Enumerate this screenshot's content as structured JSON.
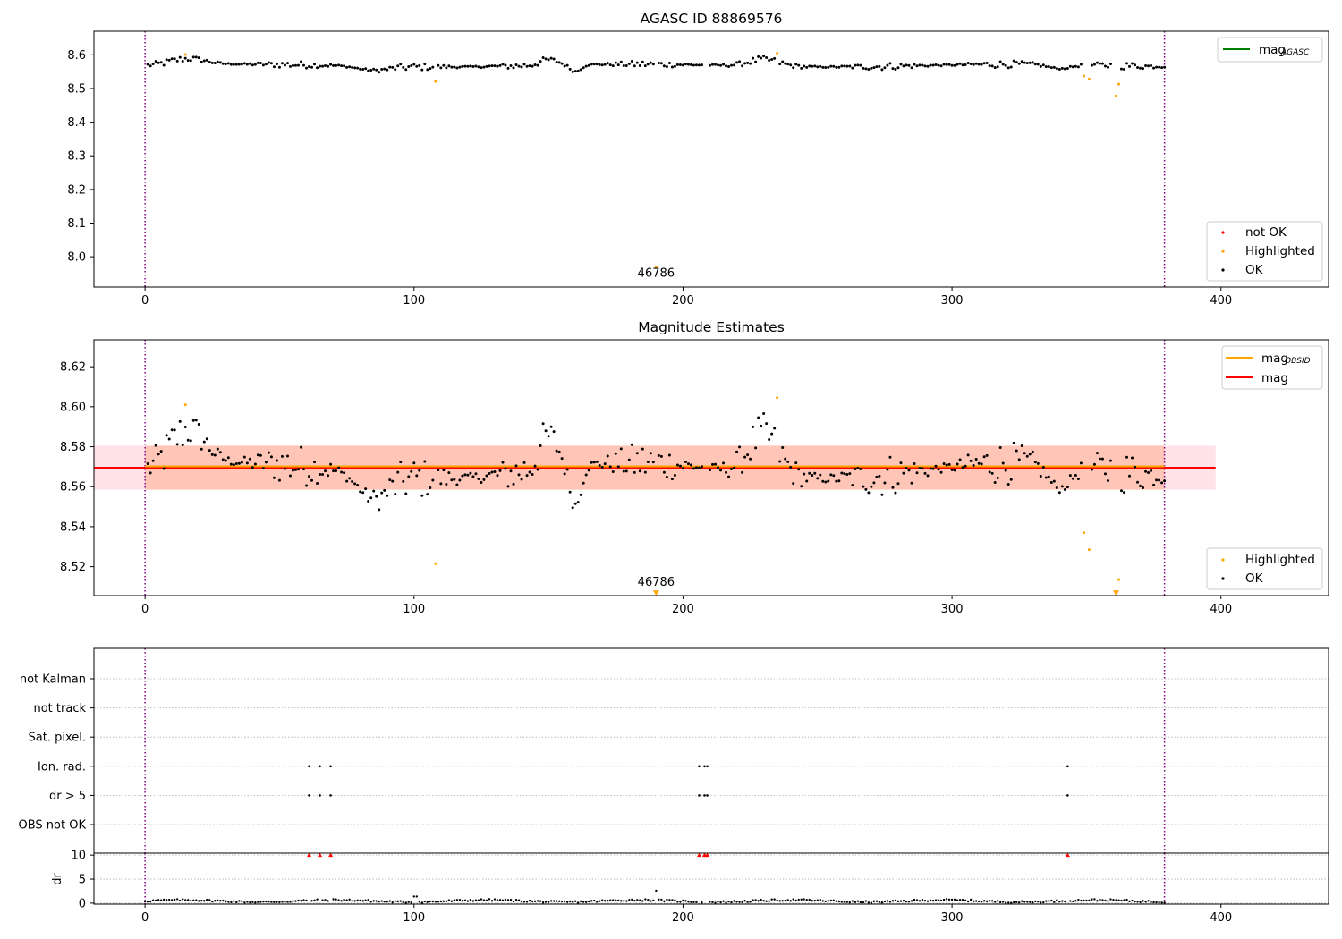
{
  "colors": {
    "ok": "#000000",
    "highlighted": "#ffa500",
    "not_ok": "#ff0000",
    "mag_agasc": "#008000",
    "mag_obsid": "#ffa500",
    "mag": "#ff0000",
    "vline": "#800080",
    "grid": "#b0b0b0",
    "band_mag": "#ffc0cb",
    "band_obsid": "#ffa07a"
  },
  "chart_data": [
    {
      "id": "top",
      "type": "scatter",
      "title": "AGASC ID 88869576",
      "xlim": [
        -19,
        440
      ],
      "ylim": [
        7.91,
        8.67
      ],
      "xticks": [
        0,
        100,
        200,
        300,
        400
      ],
      "xtick_labels": [
        "0",
        "100",
        "200",
        "300",
        "400"
      ],
      "yticks": [
        8.0,
        8.1,
        8.2,
        8.3,
        8.4,
        8.5,
        8.6
      ],
      "ytick_labels": [
        "8.0",
        "8.1",
        "8.2",
        "8.3",
        "8.4",
        "8.5",
        "8.6"
      ],
      "vlines": [
        0,
        379
      ],
      "legend_lines": [
        {
          "label": "mag",
          "sub": "AGASC",
          "color": "#008000",
          "placement": "top-right"
        }
      ],
      "legend_points": [
        {
          "label": "not OK",
          "color": "#ff0000"
        },
        {
          "label": "Highlighted",
          "color": "#ffa500"
        },
        {
          "label": "OK",
          "color": "#000000"
        }
      ],
      "ok_series": {
        "x_start": 0,
        "x_end": 379,
        "x_step": 1,
        "base": 8.568,
        "gaps": [
          [
            0,
            0
          ],
          [
            108,
            108
          ],
          [
            190,
            190
          ],
          [
            208,
            209
          ],
          [
            235,
            235
          ],
          [
            349,
            351
          ],
          [
            360,
            362
          ]
        ],
        "amplitude": 0.011,
        "features": [
          {
            "x": 16,
            "w": 9,
            "a": 0.018
          },
          {
            "x": 85,
            "w": 8,
            "a": -0.012
          },
          {
            "x": 150,
            "w": 5,
            "a": 0.016
          },
          {
            "x": 160,
            "w": 3,
            "a": -0.02
          },
          {
            "x": 230,
            "w": 8,
            "a": 0.02
          },
          {
            "x": 340,
            "w": 6,
            "a": -0.012
          }
        ]
      },
      "highlighted_points": [
        {
          "x": 15,
          "y": 8.601
        },
        {
          "x": 108,
          "y": 8.521
        },
        {
          "x": 235,
          "y": 8.605
        },
        {
          "x": 349,
          "y": 8.537
        },
        {
          "x": 351,
          "y": 8.528
        },
        {
          "x": 361,
          "y": 8.478
        },
        {
          "x": 362,
          "y": 8.513
        },
        {
          "x": 190,
          "y": 7.97
        }
      ],
      "annotation": {
        "text": "46786",
        "x": 190,
        "y": 7.93
      }
    },
    {
      "id": "mid",
      "type": "scatter",
      "title": "Magnitude Estimates",
      "xlim": [
        -19,
        440
      ],
      "ylim": [
        8.5055,
        8.6335
      ],
      "xticks": [
        0,
        100,
        200,
        300,
        400
      ],
      "xtick_labels": [
        "0",
        "100",
        "200",
        "300",
        "400"
      ],
      "yticks": [
        8.52,
        8.54,
        8.56,
        8.58,
        8.6,
        8.62
      ],
      "ytick_labels": [
        "8.52",
        "8.54",
        "8.56",
        "8.58",
        "8.60",
        "8.62"
      ],
      "vlines": [
        0,
        379
      ],
      "mag": 8.5695,
      "mag_band": [
        8.5585,
        8.5805
      ],
      "mag_band_x": [
        -19,
        398
      ],
      "mag_obsid": 8.5695,
      "mag_obsid_band": [
        8.5585,
        8.5805
      ],
      "mag_obsid_x": [
        0,
        379
      ],
      "legend_lines": [
        {
          "label": "mag",
          "sub": "OBSID",
          "color": "#ffa500"
        },
        {
          "label": "mag",
          "sub": "",
          "color": "#ff0000"
        }
      ],
      "legend_points": [
        {
          "label": "Highlighted",
          "color": "#ffa500"
        },
        {
          "label": "OK",
          "color": "#000000"
        }
      ],
      "highlighted_points": [
        {
          "x": 15,
          "y": 8.601
        },
        {
          "x": 108,
          "y": 8.5215
        },
        {
          "x": 235,
          "y": 8.6045
        },
        {
          "x": 349,
          "y": 8.537
        },
        {
          "x": 351,
          "y": 8.5285
        },
        {
          "x": 362,
          "y": 8.5135
        }
      ],
      "edge_markers": [
        {
          "x": 190,
          "y": 8.5068
        },
        {
          "x": 361,
          "y": 8.5068
        }
      ],
      "annotation": {
        "text": "46786",
        "x": 190,
        "y": 8.5095
      },
      "ok_series": "same as top panel"
    },
    {
      "id": "flags",
      "type": "scatter",
      "categories": [
        "not Kalman",
        "not track",
        "Sat. pixel.",
        "Ion. rad.",
        "dr > 5",
        "OBS not OK"
      ],
      "flagged": {
        "Ion. rad.": [
          61,
          65,
          69,
          206,
          208,
          209,
          343
        ],
        "dr > 5": [
          61,
          65,
          69,
          206,
          208,
          209,
          343
        ]
      },
      "xlim": [
        -19,
        440
      ],
      "vlines": [
        0,
        379
      ]
    },
    {
      "id": "dr",
      "type": "scatter",
      "ylabel": "dr",
      "ylim": [
        -0.2,
        10.4
      ],
      "yticks": [
        0,
        5,
        10
      ],
      "ytick_labels": [
        "0",
        "5",
        "10"
      ],
      "xlim": [
        -19,
        440
      ],
      "xticks": [
        0,
        100,
        200,
        300,
        400
      ],
      "xtick_labels": [
        "0",
        "100",
        "200",
        "300",
        "400"
      ],
      "vlines": [
        0,
        379
      ],
      "base": 0.45,
      "spike": {
        "x": 190,
        "y": 2.6
      },
      "clipped_high": [
        61,
        65,
        69,
        206,
        208,
        209,
        343
      ],
      "clipped_value": 10
    }
  ]
}
